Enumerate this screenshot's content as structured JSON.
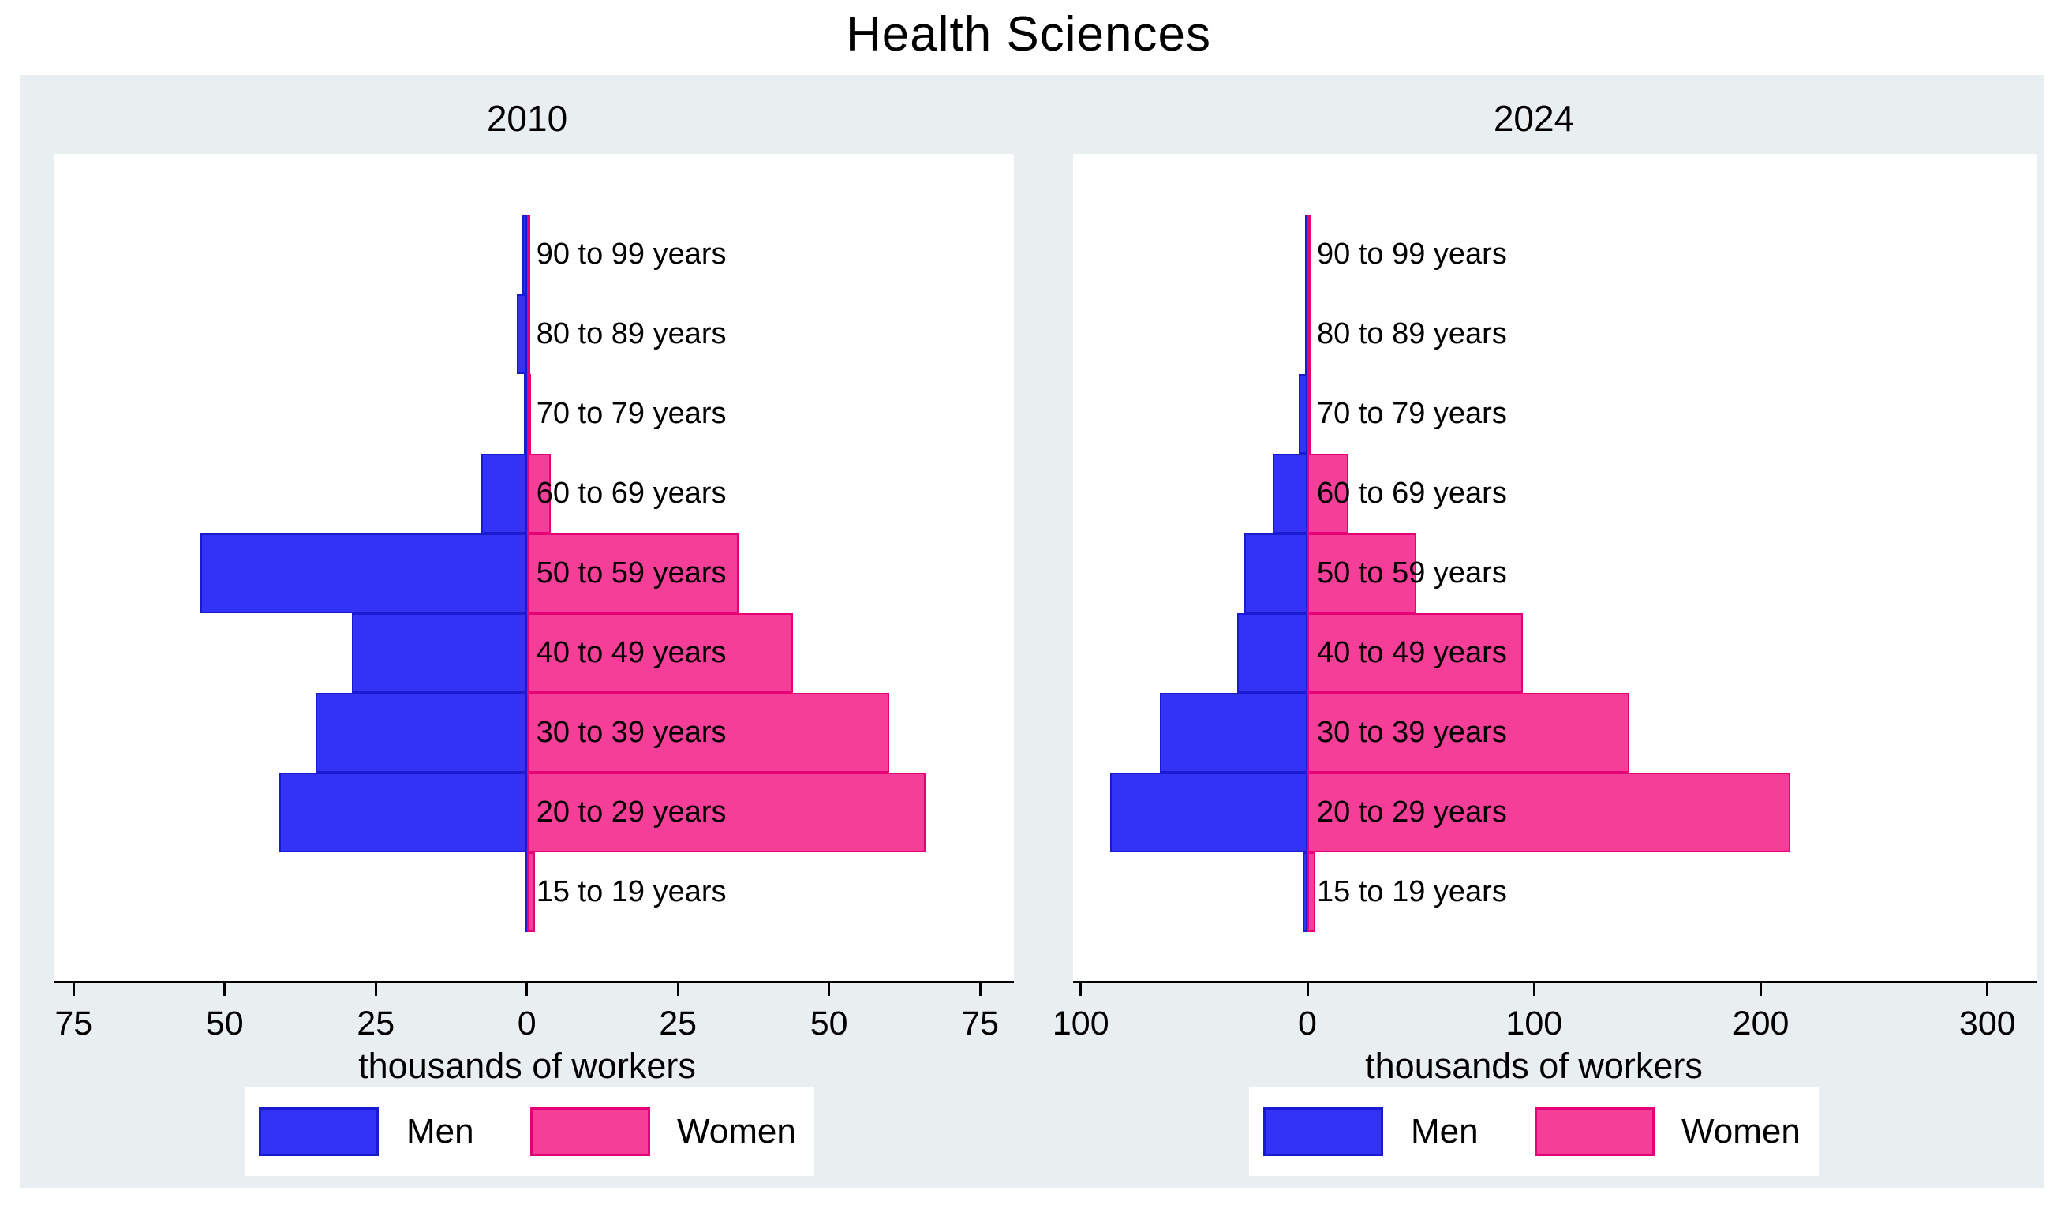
{
  "title": "Health Sciences",
  "legend": {
    "men_label": "Men",
    "women_label": "Women"
  },
  "colors": {
    "men_fill": "#3333f5",
    "men_border": "#1a1ad1",
    "women_fill": "#f53e98",
    "women_border": "#e60078",
    "outer_bg": "#e9eff1",
    "panel_bg": "#ffffff"
  },
  "age_groups_top_to_bottom": [
    "90 to 99 years",
    "80 to 89 years",
    "70 to 79 years",
    "60 to 69 years",
    "50 to 59 years",
    "40 to 49 years",
    "30 to 39 years",
    "20 to 29 years",
    "15 to 19 years"
  ],
  "chart_data": [
    {
      "type": "bar",
      "subtype": "population-pyramid",
      "title": "2010",
      "xlabel": "thousands of workers",
      "units": "thousands of workers",
      "categories": [
        "90 to 99 years",
        "80 to 89 years",
        "70 to 79 years",
        "60 to 69 years",
        "50 to 59 years",
        "40 to 49 years",
        "30 to 39 years",
        "20 to 29 years",
        "15 to 19 years"
      ],
      "series": [
        {
          "name": "Men",
          "side": "left",
          "values": [
            0.8,
            1.7,
            0.5,
            7.5,
            54,
            29,
            35,
            41,
            0.4
          ]
        },
        {
          "name": "Women",
          "side": "right",
          "values": [
            0.1,
            0.2,
            0.7,
            4,
            35,
            44,
            60,
            66,
            1.3
          ]
        }
      ],
      "xticks": [
        {
          "value": -75,
          "label": "75"
        },
        {
          "value": -50,
          "label": "50"
        },
        {
          "value": -25,
          "label": "25"
        },
        {
          "value": 0,
          "label": "0"
        },
        {
          "value": 25,
          "label": "25"
        },
        {
          "value": 50,
          "label": "50"
        },
        {
          "value": 75,
          "label": "75"
        }
      ],
      "xlim": [
        -78.3,
        80.6
      ],
      "grid": false,
      "legend_position": "bottom"
    },
    {
      "type": "bar",
      "subtype": "population-pyramid",
      "title": "2024",
      "xlabel": "thousands of workers",
      "units": "thousands of workers",
      "categories": [
        "90 to 99 years",
        "80 to 89 years",
        "70 to 79 years",
        "60 to 69 years",
        "50 to 59 years",
        "40 to 49 years",
        "30 to 39 years",
        "20 to 29 years",
        "15 to 19 years"
      ],
      "series": [
        {
          "name": "Men",
          "side": "left",
          "values": [
            0.5,
            0.8,
            4,
            15.5,
            28,
            31,
            65,
            87,
            2
          ]
        },
        {
          "name": "Women",
          "side": "right",
          "values": [
            1.3,
            0.3,
            0.6,
            18,
            48,
            95,
            142,
            213,
            3.5
          ]
        }
      ],
      "xticks": [
        {
          "value": -100,
          "label": "100"
        },
        {
          "value": 0,
          "label": "0"
        },
        {
          "value": 100,
          "label": "100"
        },
        {
          "value": 200,
          "label": "200"
        },
        {
          "value": 300,
          "label": "300"
        }
      ],
      "xlim": [
        -103.4,
        322
      ],
      "grid": false,
      "legend_position": "bottom"
    }
  ]
}
